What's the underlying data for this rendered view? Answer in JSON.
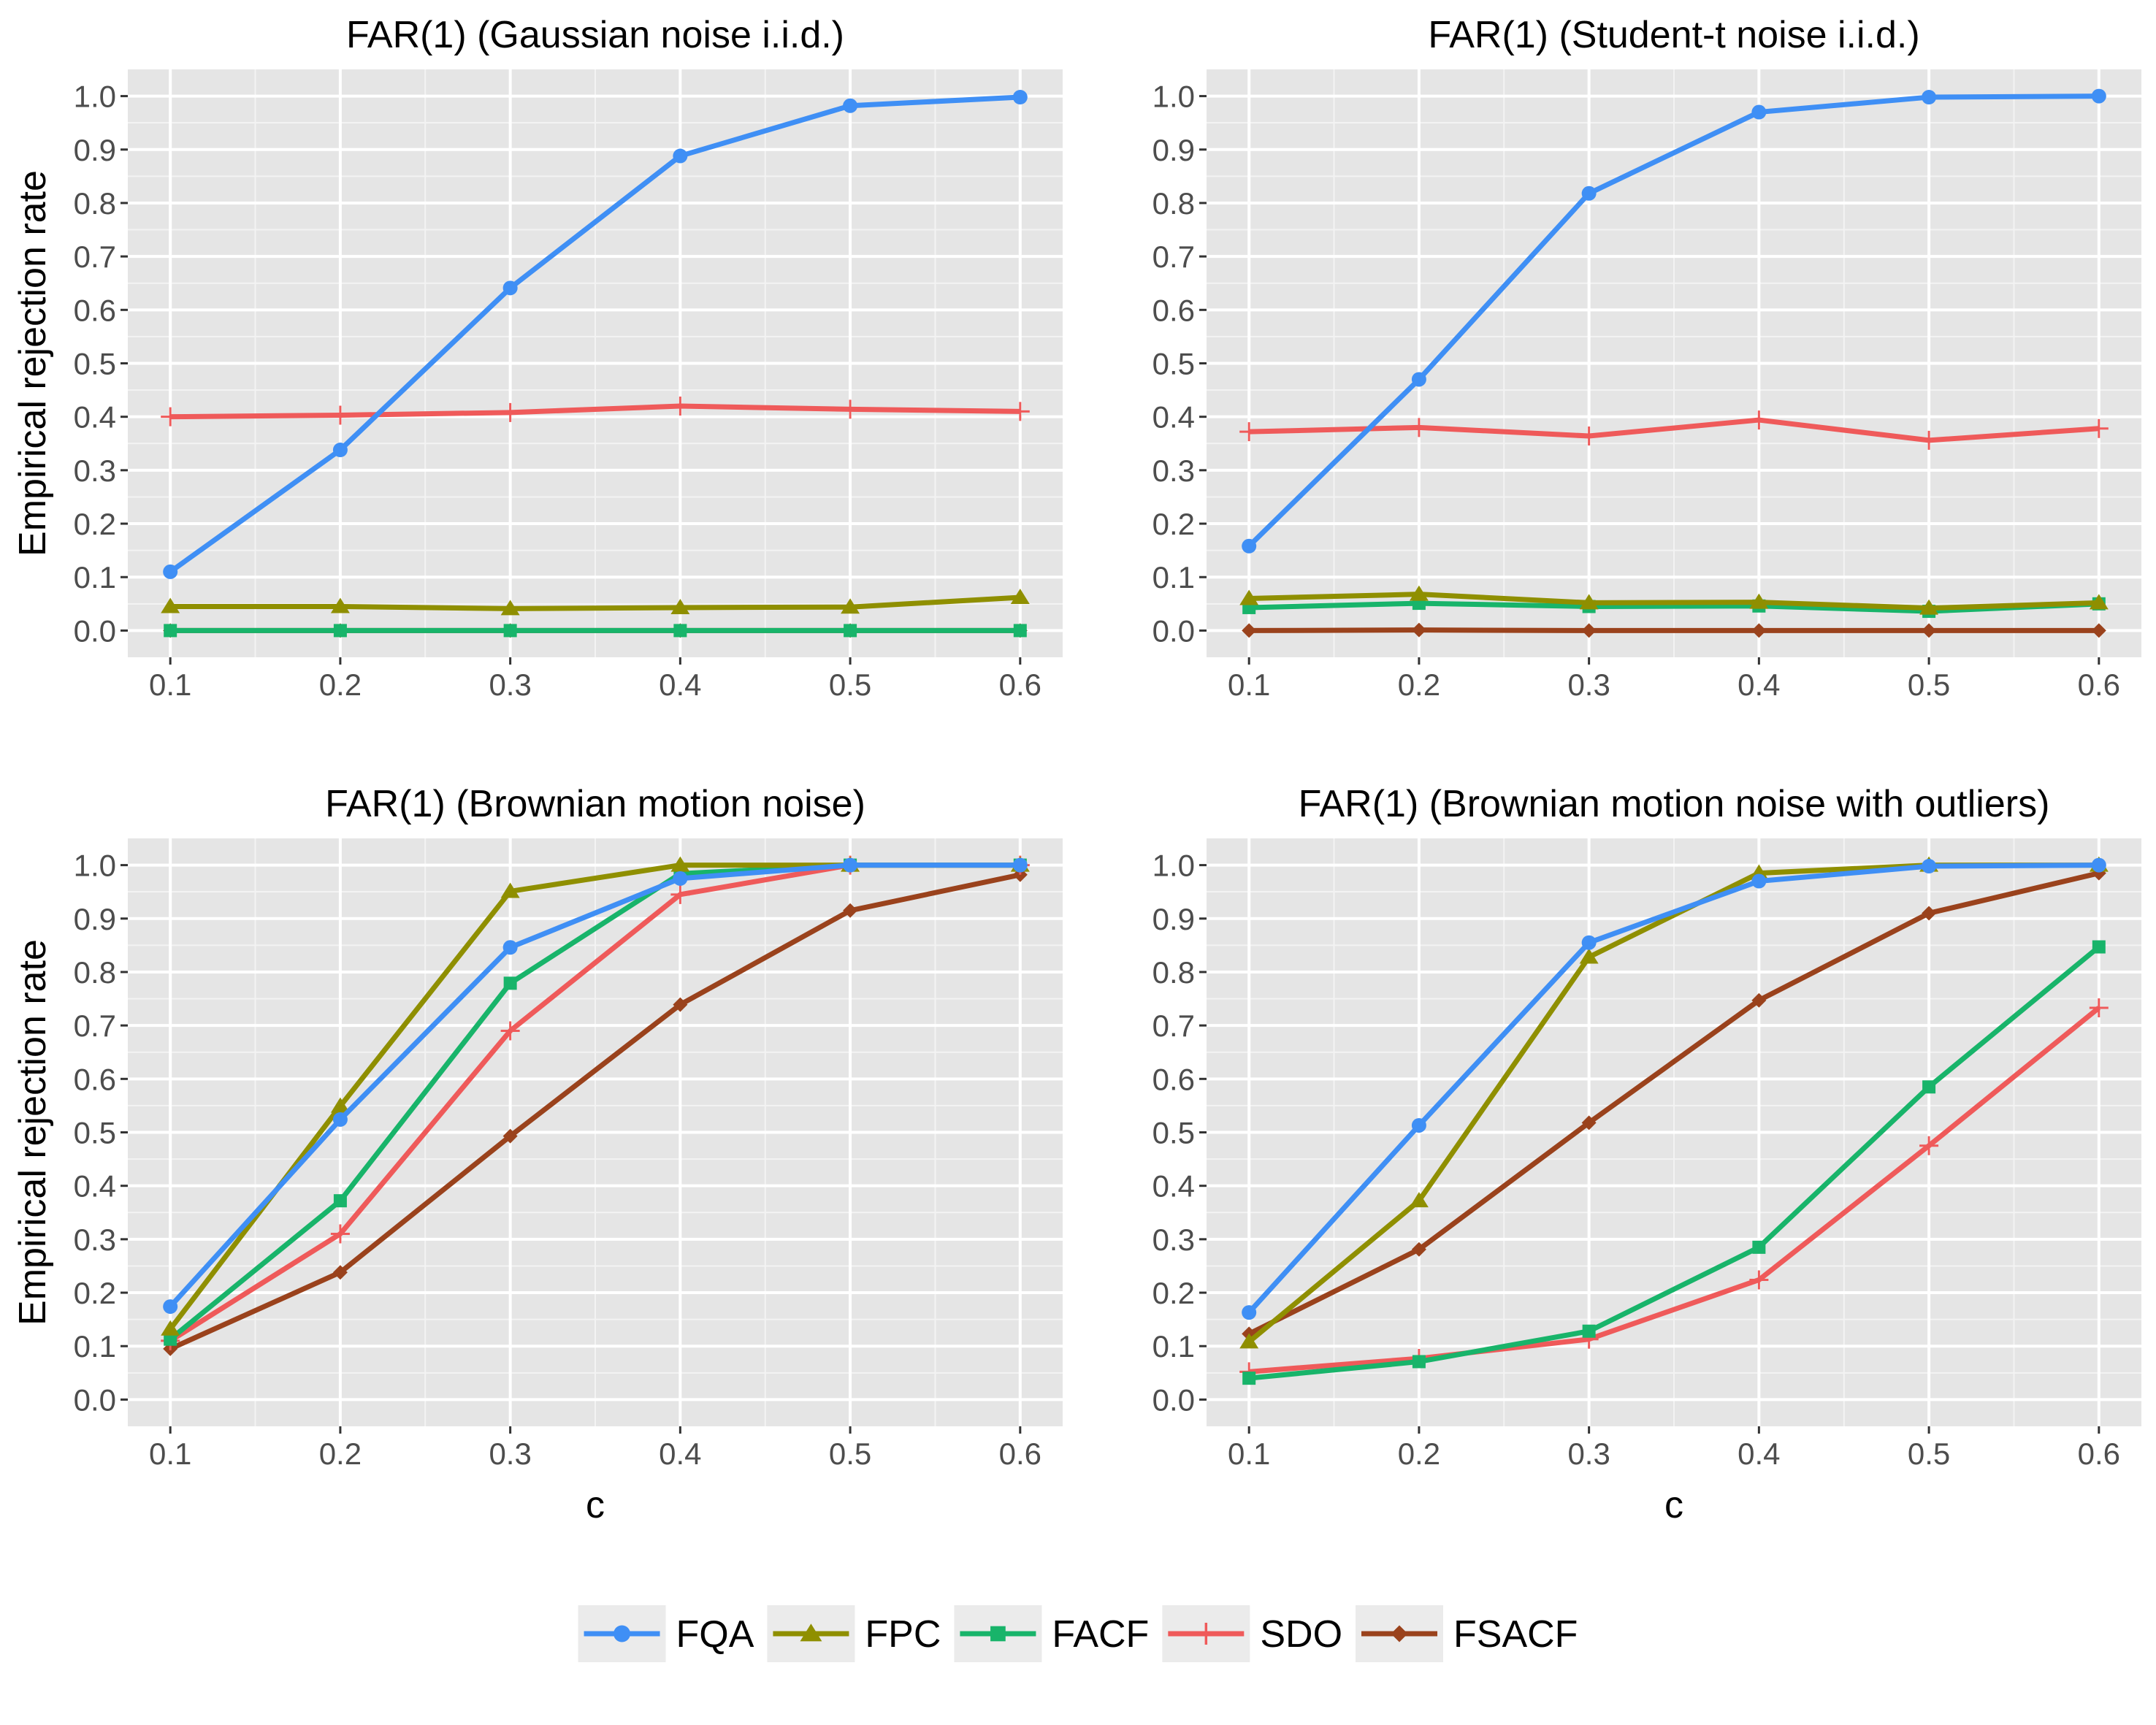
{
  "colors": {
    "FQA": "#3f8ff5",
    "FPC": "#8f8f00",
    "FACF": "#18b46a",
    "SDO": "#ef5a5a",
    "FSACF": "#9a421c"
  },
  "legend": {
    "items": [
      {
        "name": "FQA",
        "marker": "circle"
      },
      {
        "name": "FPC",
        "marker": "triangle"
      },
      {
        "name": "FACF",
        "marker": "square"
      },
      {
        "name": "SDO",
        "marker": "plus"
      },
      {
        "name": "FSACF",
        "marker": "diamond"
      }
    ]
  },
  "chart_data": [
    {
      "type": "line",
      "title": "FAR(1) (Gaussian noise i.i.d.)",
      "xlabel": "",
      "ylabel": "Empirical rejection rate",
      "x": [
        0.1,
        0.2,
        0.3,
        0.4,
        0.5,
        0.6
      ],
      "x_ticks": [
        "0.1",
        "0.2",
        "0.3",
        "0.4",
        "0.5",
        "0.6"
      ],
      "y_ticks": [
        "0.0",
        "0.1",
        "0.2",
        "0.3",
        "0.4",
        "0.5",
        "0.6",
        "0.7",
        "0.8",
        "0.9",
        "1.0"
      ],
      "xlim": [
        0.075,
        0.625
      ],
      "ylim": [
        -0.05,
        1.05
      ],
      "series": [
        {
          "name": "FQA",
          "values": [
            0.11,
            0.338,
            0.641,
            0.888,
            0.982,
            0.998
          ]
        },
        {
          "name": "FPC",
          "values": [
            0.045,
            0.045,
            0.041,
            0.043,
            0.044,
            0.062
          ]
        },
        {
          "name": "FACF",
          "values": [
            0.0,
            0.0,
            0.0,
            0.0,
            0.0,
            0.0
          ]
        },
        {
          "name": "SDO",
          "values": [
            0.4,
            0.403,
            0.408,
            0.42,
            0.414,
            0.41
          ]
        },
        {
          "name": "FSACF",
          "values": [
            0.0,
            0.0,
            0.0,
            0.0,
            0.0,
            0.0
          ]
        }
      ]
    },
    {
      "type": "line",
      "title": "FAR(1) (Student-t noise i.i.d.)",
      "xlabel": "",
      "ylabel": "",
      "x": [
        0.1,
        0.2,
        0.3,
        0.4,
        0.5,
        0.6
      ],
      "x_ticks": [
        "0.1",
        "0.2",
        "0.3",
        "0.4",
        "0.5",
        "0.6"
      ],
      "y_ticks": [
        "0.0",
        "0.1",
        "0.2",
        "0.3",
        "0.4",
        "0.5",
        "0.6",
        "0.7",
        "0.8",
        "0.9",
        "1.0"
      ],
      "xlim": [
        0.075,
        0.625
      ],
      "ylim": [
        -0.05,
        1.05
      ],
      "series": [
        {
          "name": "FQA",
          "values": [
            0.158,
            0.47,
            0.818,
            0.97,
            0.998,
            1.0
          ]
        },
        {
          "name": "FPC",
          "values": [
            0.06,
            0.068,
            0.052,
            0.053,
            0.042,
            0.052
          ]
        },
        {
          "name": "FACF",
          "values": [
            0.043,
            0.051,
            0.045,
            0.046,
            0.036,
            0.05
          ]
        },
        {
          "name": "SDO",
          "values": [
            0.372,
            0.38,
            0.364,
            0.394,
            0.356,
            0.378
          ]
        },
        {
          "name": "FSACF",
          "values": [
            0.0,
            0.001,
            0.0,
            0.0,
            0.0,
            0.0
          ]
        }
      ]
    },
    {
      "type": "line",
      "title": "FAR(1) (Brownian motion noise)",
      "xlabel": "c",
      "ylabel": "Empirical rejection rate",
      "x": [
        0.1,
        0.2,
        0.3,
        0.4,
        0.5,
        0.6
      ],
      "x_ticks": [
        "0.1",
        "0.2",
        "0.3",
        "0.4",
        "0.5",
        "0.6"
      ],
      "y_ticks": [
        "0.0",
        "0.1",
        "0.2",
        "0.3",
        "0.4",
        "0.5",
        "0.6",
        "0.7",
        "0.8",
        "0.9",
        "1.0"
      ],
      "xlim": [
        0.075,
        0.625
      ],
      "ylim": [
        -0.05,
        1.05
      ],
      "series": [
        {
          "name": "FQA",
          "values": [
            0.174,
            0.524,
            0.846,
            0.975,
            1.0,
            1.0
          ]
        },
        {
          "name": "FPC",
          "values": [
            0.132,
            0.549,
            0.951,
            1.0,
            1.0,
            1.0
          ]
        },
        {
          "name": "FACF",
          "values": [
            0.113,
            0.372,
            0.779,
            0.984,
            1.0,
            1.0
          ]
        },
        {
          "name": "SDO",
          "values": [
            0.11,
            0.31,
            0.69,
            0.945,
            1.0,
            1.0
          ]
        },
        {
          "name": "FSACF",
          "values": [
            0.095,
            0.238,
            0.493,
            0.739,
            0.915,
            0.982
          ]
        }
      ]
    },
    {
      "type": "line",
      "title": "FAR(1) (Brownian motion noise with outliers)",
      "xlabel": "c",
      "ylabel": "",
      "x": [
        0.1,
        0.2,
        0.3,
        0.4,
        0.5,
        0.6
      ],
      "x_ticks": [
        "0.1",
        "0.2",
        "0.3",
        "0.4",
        "0.5",
        "0.6"
      ],
      "y_ticks": [
        "0.0",
        "0.1",
        "0.2",
        "0.3",
        "0.4",
        "0.5",
        "0.6",
        "0.7",
        "0.8",
        "0.9",
        "1.0"
      ],
      "xlim": [
        0.075,
        0.625
      ],
      "ylim": [
        -0.05,
        1.05
      ],
      "series": [
        {
          "name": "FQA",
          "values": [
            0.163,
            0.513,
            0.855,
            0.97,
            0.998,
            1.0
          ]
        },
        {
          "name": "FPC",
          "values": [
            0.108,
            0.372,
            0.828,
            0.985,
            1.0,
            1.0
          ]
        },
        {
          "name": "FACF",
          "values": [
            0.04,
            0.071,
            0.128,
            0.285,
            0.585,
            0.847
          ]
        },
        {
          "name": "SDO",
          "values": [
            0.052,
            0.077,
            0.113,
            0.224,
            0.475,
            0.733
          ]
        },
        {
          "name": "FSACF",
          "values": [
            0.123,
            0.281,
            0.518,
            0.747,
            0.91,
            0.985
          ]
        }
      ]
    }
  ]
}
